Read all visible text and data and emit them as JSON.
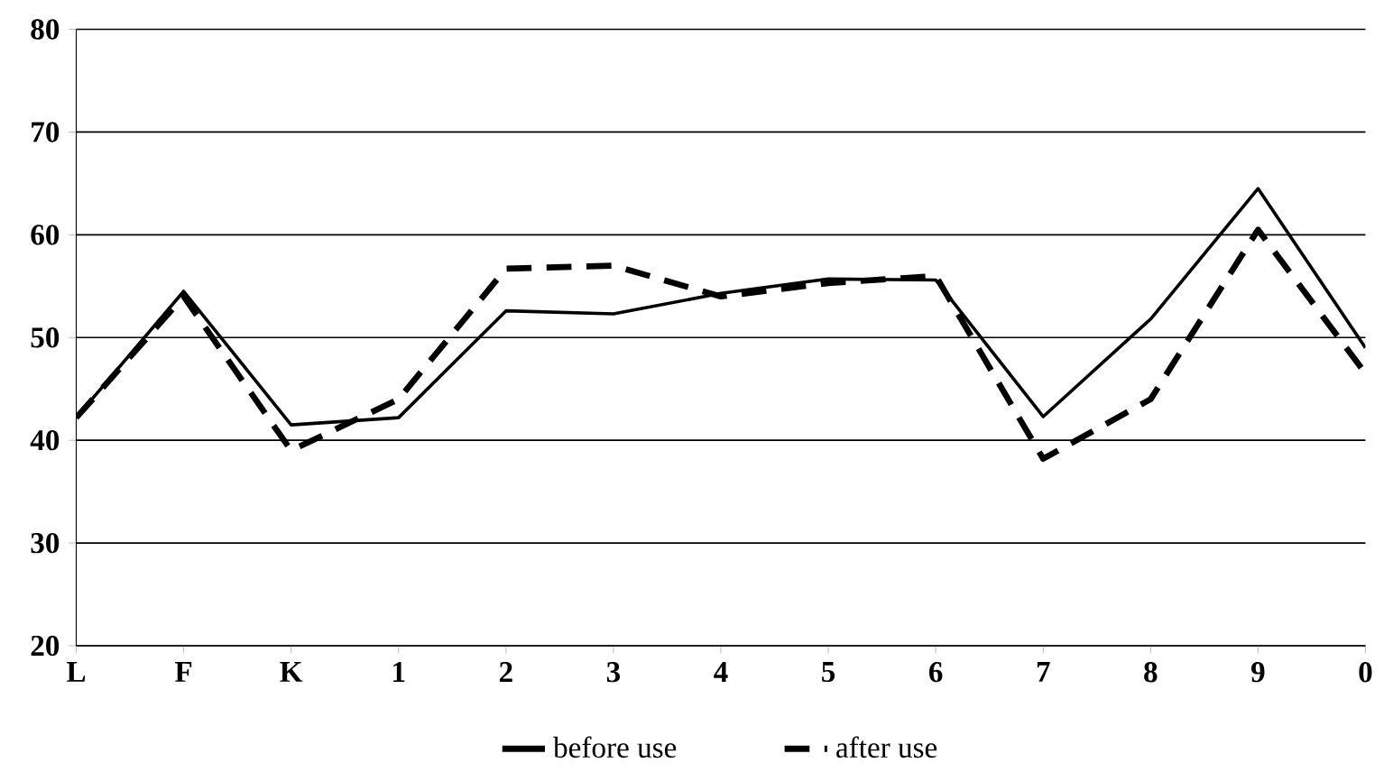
{
  "chart_data": {
    "type": "line",
    "categories": [
      "L",
      "F",
      "K",
      "1",
      "2",
      "3",
      "4",
      "5",
      "6",
      "7",
      "8",
      "9",
      "0"
    ],
    "series": [
      {
        "name": "before use",
        "color": "#000000",
        "line_style": "solid",
        "values": [
          42.2,
          54.5,
          41.5,
          42.2,
          52.6,
          52.3,
          54.3,
          55.7,
          55.6,
          42.3,
          51.8,
          64.5,
          49
        ]
      },
      {
        "name": "after use",
        "color": "#000000",
        "line_style": "dashed",
        "values": [
          42.2,
          54,
          39,
          44,
          56.7,
          57,
          54,
          55.3,
          56,
          38.2,
          44,
          60.5,
          46.5
        ]
      }
    ],
    "ylim": [
      20,
      80
    ],
    "yticks": [
      20,
      30,
      40,
      50,
      60,
      70,
      80
    ],
    "grid": "y",
    "legend": "bottom",
    "marker": "none"
  }
}
